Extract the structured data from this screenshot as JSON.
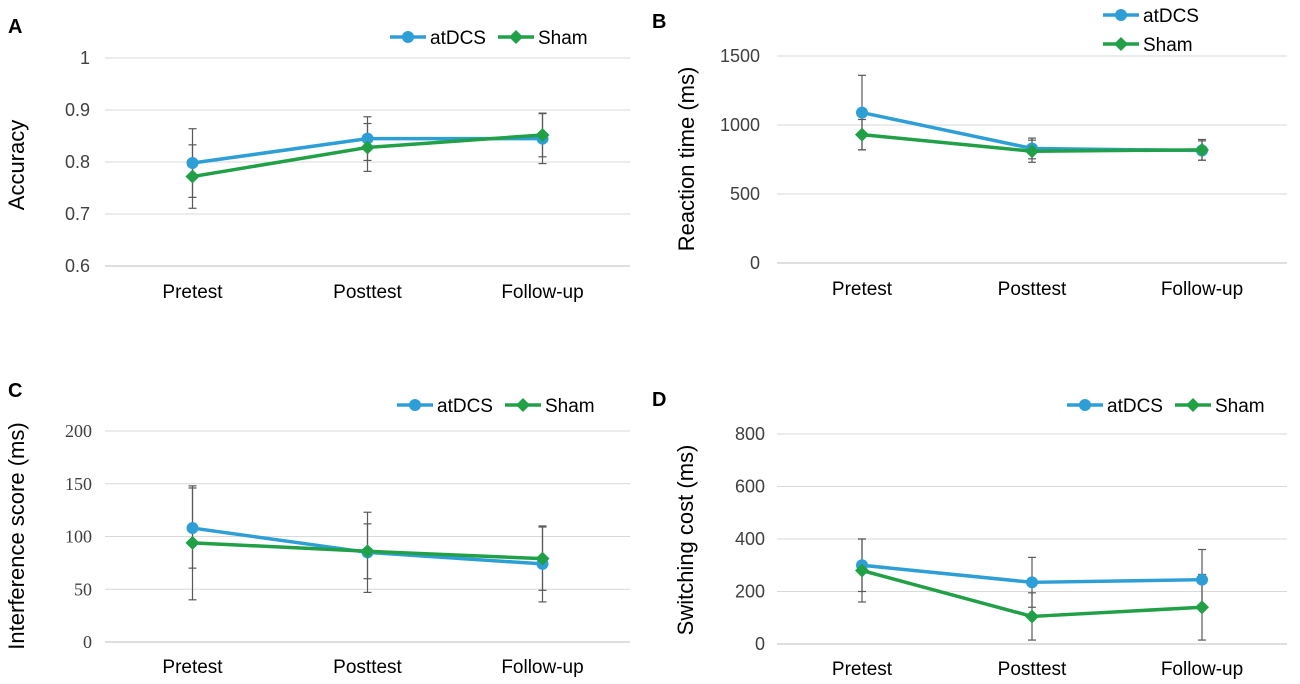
{
  "colors": {
    "atDCS": "#2e9fd6",
    "Sham": "#21a048"
  },
  "chart_data": [
    {
      "type": "line",
      "panel": "A",
      "ylabel": "Accuracy",
      "categories": [
        "Pretest",
        "Posttest",
        "Follow-up"
      ],
      "ylim": [
        0.6,
        1.0
      ],
      "yticks": [
        0.6,
        0.7,
        0.8,
        0.9,
        1.0
      ],
      "ytick_labels": [
        "0.6",
        "0.7",
        "0.8",
        "0.9",
        "1"
      ],
      "legend": [
        "atDCS",
        "Sham"
      ],
      "series": [
        {
          "name": "atDCS",
          "values": [
            0.798,
            0.845,
            0.845
          ],
          "errors": [
            0.066,
            0.042,
            0.048
          ]
        },
        {
          "name": "Sham",
          "values": [
            0.772,
            0.828,
            0.852
          ],
          "errors": [
            0.061,
            0.046,
            0.042
          ]
        }
      ]
    },
    {
      "type": "line",
      "panel": "B",
      "ylabel": "Reaction time (ms)",
      "categories": [
        "Pretest",
        "Posttest",
        "Follow-up"
      ],
      "ylim": [
        0,
        1500
      ],
      "yticks": [
        0,
        500,
        1000,
        1500
      ],
      "ytick_labels": [
        "0",
        "500",
        "1000",
        "1500"
      ],
      "legend": [
        "atDCS",
        "Sham"
      ],
      "series": [
        {
          "name": "atDCS",
          "values": [
            1090,
            830,
            815
          ],
          "errors": [
            270,
            75,
            70
          ]
        },
        {
          "name": "Sham",
          "values": [
            930,
            810,
            820
          ],
          "errors": [
            110,
            80,
            75
          ]
        }
      ]
    },
    {
      "type": "line",
      "panel": "C",
      "ylabel": "Interference score (ms)",
      "categories": [
        "Pretest",
        "Posttest",
        "Follow-up"
      ],
      "ylim": [
        0,
        200
      ],
      "yticks": [
        0,
        50,
        100,
        150,
        200
      ],
      "ytick_labels": [
        "0",
        "50",
        "100",
        "150",
        "200"
      ],
      "legend": [
        "atDCS",
        "Sham"
      ],
      "series": [
        {
          "name": "atDCS",
          "values": [
            108,
            85,
            74
          ],
          "errors": [
            38,
            38,
            36
          ]
        },
        {
          "name": "Sham",
          "values": [
            94,
            86,
            79
          ],
          "errors": [
            54,
            26,
            30
          ]
        }
      ]
    },
    {
      "type": "line",
      "panel": "D",
      "ylabel": "Switching cost (ms)",
      "categories": [
        "Pretest",
        "Posttest",
        "Follow-up"
      ],
      "ylim": [
        0,
        800
      ],
      "yticks": [
        0,
        200,
        400,
        600,
        800
      ],
      "ytick_labels": [
        "0",
        "200",
        "400",
        "600",
        "800"
      ],
      "legend": [
        "atDCS",
        "Sham"
      ],
      "series": [
        {
          "name": "atDCS",
          "values": [
            300,
            235,
            245
          ],
          "errors": [
            100,
            95,
            115
          ]
        },
        {
          "name": "Sham",
          "values": [
            280,
            105,
            140
          ],
          "errors": [
            120,
            90,
            125
          ]
        }
      ]
    }
  ]
}
